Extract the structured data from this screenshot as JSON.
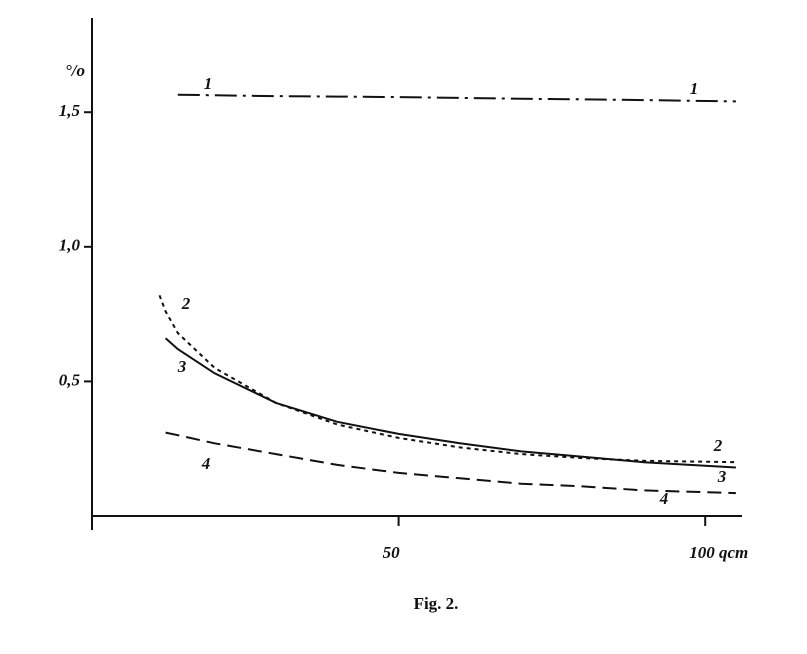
{
  "chart_data": {
    "type": "line",
    "caption": "Fig. 2.",
    "ylabel": "°/o",
    "x": [
      11,
      12,
      14,
      20,
      30,
      40,
      50,
      60,
      70,
      80,
      90,
      105
    ],
    "series": [
      {
        "name": "1",
        "color": "#111111",
        "linestyle": "dash-dot",
        "values": [
          null,
          null,
          1.565,
          1.563,
          1.56,
          1.558,
          1.556,
          1.553,
          1.55,
          1.548,
          1.545,
          1.54
        ]
      },
      {
        "name": "2",
        "color": "#111111",
        "linestyle": "dotted",
        "values": [
          0.82,
          0.76,
          0.68,
          0.55,
          0.42,
          0.34,
          0.29,
          0.255,
          0.23,
          0.215,
          0.205,
          0.2
        ]
      },
      {
        "name": "3",
        "color": "#111111",
        "linestyle": "solid",
        "values": [
          null,
          0.66,
          0.62,
          0.53,
          0.42,
          0.35,
          0.305,
          0.27,
          0.24,
          0.22,
          0.2,
          0.18
        ]
      },
      {
        "name": "4",
        "color": "#111111",
        "linestyle": "dashed",
        "values": [
          null,
          0.31,
          0.3,
          0.27,
          0.23,
          0.19,
          0.16,
          0.14,
          0.12,
          0.11,
          0.095,
          0.085
        ]
      }
    ],
    "xlim": [
      0,
      106
    ],
    "ylim": [
      0,
      1.85
    ],
    "xticks": [
      50,
      {
        "value": 100,
        "label": "100 qcm"
      }
    ],
    "yticks": [
      {
        "value": 0.5,
        "label": "0,5"
      },
      {
        "value": 1.0,
        "label": "1,0"
      },
      {
        "value": 1.5,
        "label": "1,5"
      }
    ],
    "grid": false
  }
}
